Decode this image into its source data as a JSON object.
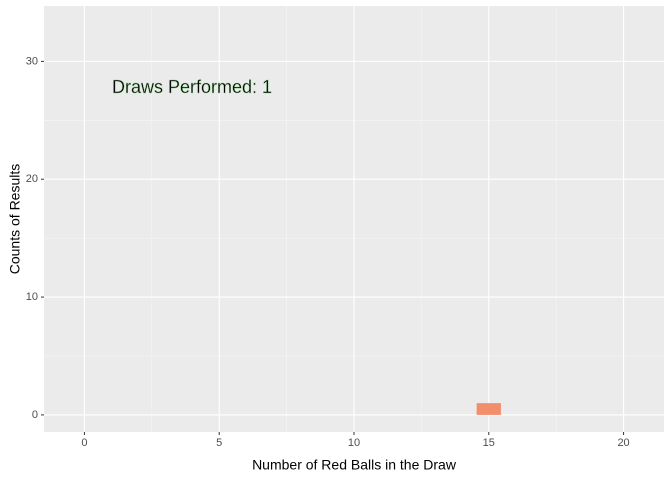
{
  "chart_data": {
    "type": "bar",
    "annotation": "Draws Performed: 1",
    "x_label": "Number of Red Balls in the Draw",
    "y_label": "Counts of Results",
    "x": [
      15
    ],
    "values": [
      1
    ],
    "color": "#f28e6c",
    "xlim": [
      -1.5,
      21.5
    ],
    "xticks": [
      0,
      5,
      10,
      15,
      20
    ],
    "ylim": [
      -1.45,
      34.7
    ],
    "yticks": [
      0,
      10,
      20,
      30
    ],
    "grid": true
  }
}
